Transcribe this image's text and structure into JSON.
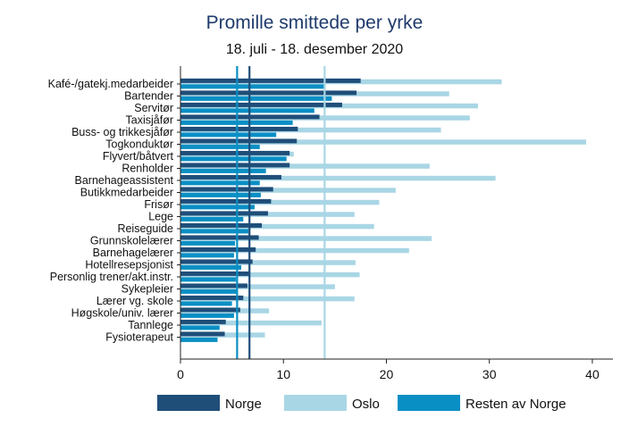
{
  "chart_data": {
    "type": "bar",
    "orientation": "horizontal",
    "title": "Promille smittede per yrke",
    "subtitle": "18. juli - 18. desember 2020",
    "categories": [
      "Kafé-/gatekj.medarbeider",
      "Bartender",
      "Servitør",
      "Taxisjåfør",
      "Buss- og trikkesjåfør",
      "Togkonduktør",
      "Flyvert/båtvert",
      "Renholder",
      "Barnehageassistent",
      "Butikkmedarbeider",
      "Frisør",
      "Lege",
      "Reiseguide",
      "Grunnskolelærer",
      "Barnehagelærer",
      "Hotellresepsjonist",
      "Personlig trener/akt.instr.",
      "Sykepleier",
      "Lærer vg. skole",
      "Høgskole/univ. lærer",
      "Tannlege",
      "Fysioterapeut"
    ],
    "series": [
      {
        "name": "Norge",
        "color": "#1f4e79",
        "values": [
          17.5,
          17.1,
          15.7,
          13.5,
          11.4,
          11.3,
          10.6,
          10.6,
          9.8,
          9.0,
          8.8,
          8.5,
          7.9,
          7.6,
          7.3,
          7.0,
          6.7,
          6.5,
          6.1,
          5.8,
          4.4,
          4.3
        ]
      },
      {
        "name": "Oslo",
        "color": "#a9d6e5",
        "values": [
          31.2,
          26.1,
          28.9,
          28.1,
          25.3,
          39.4,
          11.0,
          24.2,
          30.6,
          20.9,
          19.3,
          16.9,
          18.8,
          24.4,
          22.2,
          17.0,
          17.4,
          15.0,
          16.9,
          8.6,
          13.7,
          8.2
        ]
      },
      {
        "name": "Resten av Norge",
        "color": "#0a8fc4",
        "values": [
          14.1,
          14.7,
          13.0,
          10.9,
          9.3,
          7.7,
          10.3,
          8.3,
          7.7,
          7.8,
          7.2,
          6.1,
          6.6,
          5.3,
          5.2,
          5.9,
          5.4,
          5.5,
          5.0,
          5.2,
          3.8,
          3.6
        ]
      }
    ],
    "reference_lines": [
      {
        "x": 6.7,
        "color": "#1f4e79"
      },
      {
        "x": 14.0,
        "color": "#a9d6e5"
      },
      {
        "x": 5.5,
        "color": "#0a8fc4"
      }
    ],
    "xlim": [
      0,
      42
    ],
    "xticks": [
      0,
      10,
      20,
      30,
      40
    ],
    "grid": false,
    "legend_position": "bottom"
  }
}
